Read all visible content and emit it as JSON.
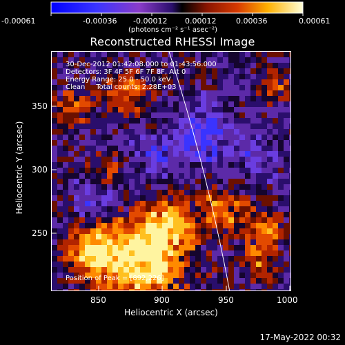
{
  "colorbar": {
    "tick_labels": [
      "-0.00061",
      "-0.00036",
      "-0.00012",
      "0.00012",
      "0.00036",
      "0.00061"
    ],
    "units_text": "(photons cm⁻² s⁻¹ asec⁻²)"
  },
  "title": "Reconstructed RHESSI Image",
  "info": {
    "time_range": "30-Dec-2012 01:42:08.000 to 01:43:56.000",
    "detectors": "Detectors: 3F 4F 5F 6F 7F 8F, Att 0",
    "energy": "Energy Range: 25.0 - 50.0 keV",
    "clean": "Clean     Total counts: 2.28E+03"
  },
  "peak_label": "Position of Peak = [892,226]",
  "axes": {
    "x_label": "Heliocentric X (arcsec)",
    "y_label": "Heliocentric Y (arcsec)",
    "x_ticks": [
      "850",
      "900",
      "950",
      "1000"
    ],
    "y_ticks": [
      "250",
      "300",
      "350"
    ],
    "x_range": [
      812,
      1000
    ],
    "y_range": [
      200,
      388
    ]
  },
  "date_stamp": "17-May-2022 00:32",
  "colors": {
    "background": "#000000",
    "text": "#ffffff",
    "limb_line": "#ffffff"
  }
}
